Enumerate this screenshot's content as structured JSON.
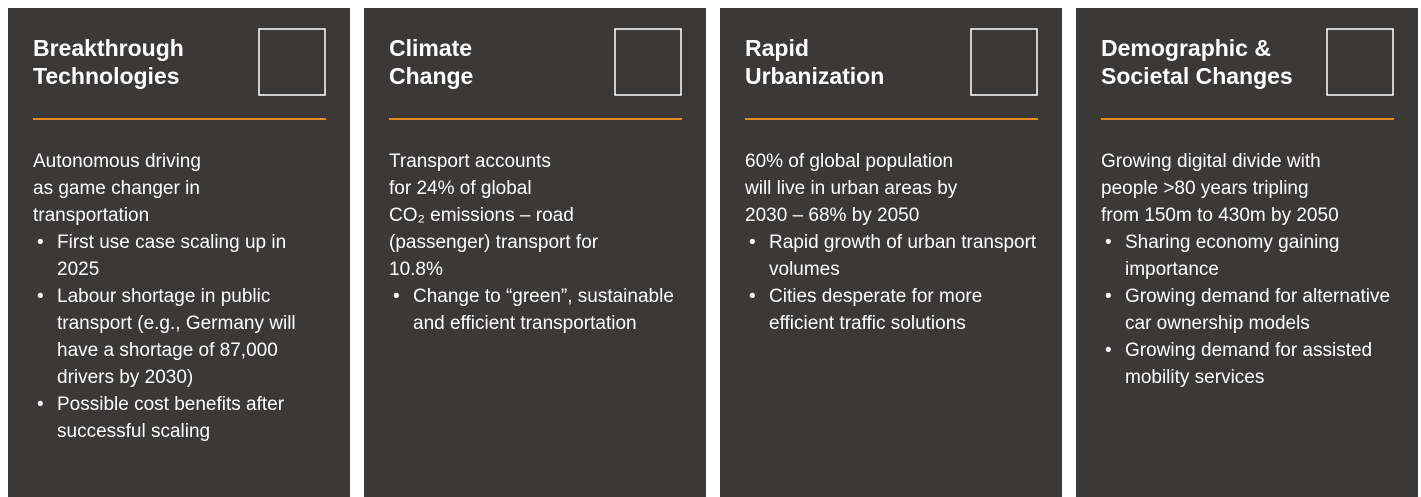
{
  "cards": [
    {
      "title": "Breakthrough\nTechnologies",
      "intro": "Autonomous driving\nas game changer in\ntransportation",
      "bullets": [
        "First use case scaling up in 2025",
        "Labour shortage in public transport (e.g., Germany will have a shortage of 87,000 drivers by 2030)",
        "Possible cost benefits after successful scaling"
      ]
    },
    {
      "title": "Climate\nChange",
      "intro": "Transport accounts\nfor 24% of global\nCO₂ emissions – road\n(passenger) transport for\n10.8%",
      "bullets": [
        "Change to “green”, sustainable and efficient transportation"
      ]
    },
    {
      "title": "Rapid\nUrbanization",
      "intro": "60% of global population\nwill live in urban areas by\n2030 – 68% by 2050",
      "bullets": [
        "Rapid growth of urban transport volumes",
        "Cities desperate for more efficient traffic solutions"
      ]
    },
    {
      "title": "Demographic &\nSocietal Changes",
      "intro": "Growing digital divide with\npeople >80 years tripling\nfrom 150m to 430m by 2050",
      "bullets": [
        "Sharing economy gaining importance",
        "Growing demand for alternative car ownership models",
        "Growing demand for assisted mobility services"
      ]
    }
  ]
}
